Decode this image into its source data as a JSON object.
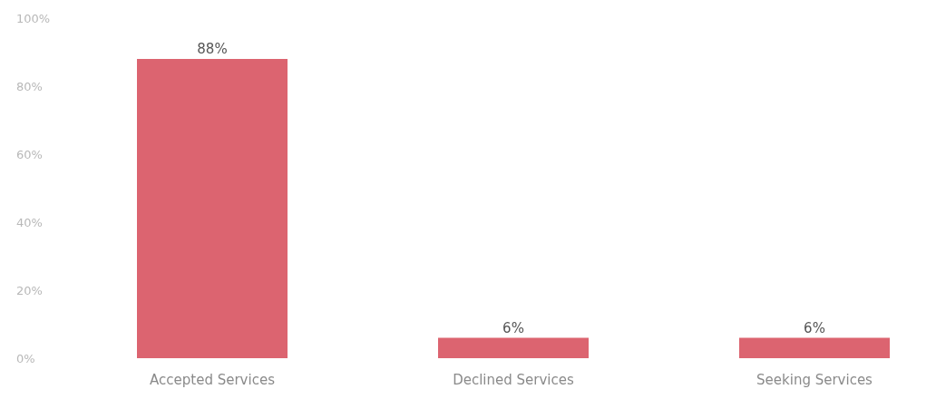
{
  "chart_data": {
    "type": "bar",
    "categories": [
      "Accepted Services",
      "Declined Services",
      "Seeking Services"
    ],
    "values": [
      88,
      6,
      6
    ],
    "value_labels": [
      "88%",
      "6%",
      "6%"
    ],
    "color": "#dc6470",
    "ylim": [
      0,
      100
    ],
    "yticks": [
      {
        "value": 0,
        "label": "0%"
      },
      {
        "value": 20,
        "label": "20%"
      },
      {
        "value": 40,
        "label": "40%"
      },
      {
        "value": 60,
        "label": "60%"
      },
      {
        "value": 80,
        "label": "80%"
      },
      {
        "value": 100,
        "label": "100%"
      }
    ],
    "grid": false
  }
}
